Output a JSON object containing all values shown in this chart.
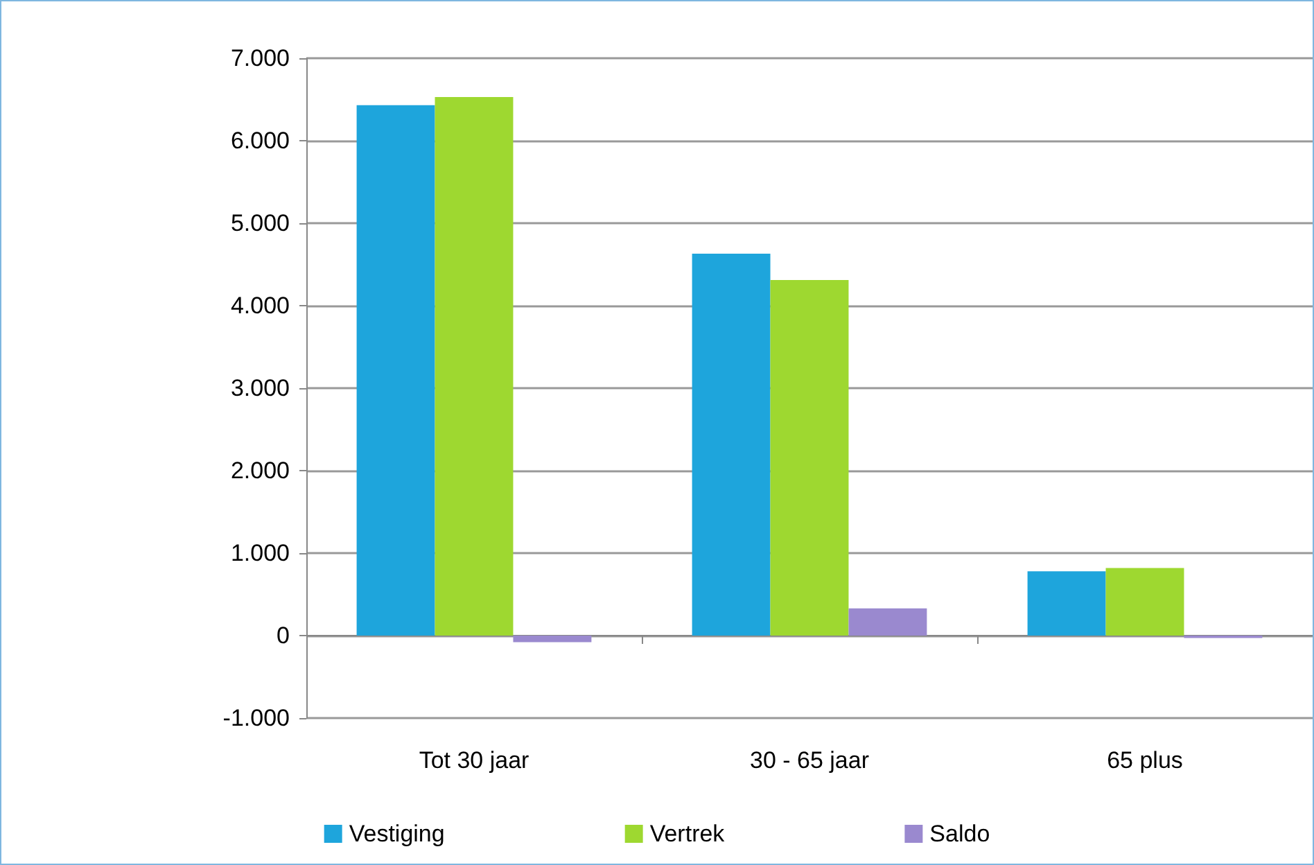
{
  "chart_data": {
    "type": "bar",
    "categories": [
      "Tot 30 jaar",
      "30 - 65 jaar",
      "65 plus"
    ],
    "series": [
      {
        "name": "Vestiging",
        "color": "#1ea5dc",
        "values": [
          6430,
          4630,
          780
        ]
      },
      {
        "name": "Vertrek",
        "color": "#9ed830",
        "values": [
          6530,
          4310,
          820
        ]
      },
      {
        "name": "Saldo",
        "color": "#9a89cf",
        "values": [
          -80,
          330,
          -30
        ]
      }
    ],
    "ylim": [
      -1000,
      7000
    ],
    "yticks": [
      {
        "value": -1000,
        "label": "-1.000"
      },
      {
        "value": 0,
        "label": "0"
      },
      {
        "value": 1000,
        "label": "1.000"
      },
      {
        "value": 2000,
        "label": "2.000"
      },
      {
        "value": 3000,
        "label": "3.000"
      },
      {
        "value": 4000,
        "label": "4.000"
      },
      {
        "value": 5000,
        "label": "5.000"
      },
      {
        "value": 6000,
        "label": "6.000"
      },
      {
        "value": 7000,
        "label": "7.000"
      }
    ],
    "grid": "y",
    "legend": "bottom"
  }
}
